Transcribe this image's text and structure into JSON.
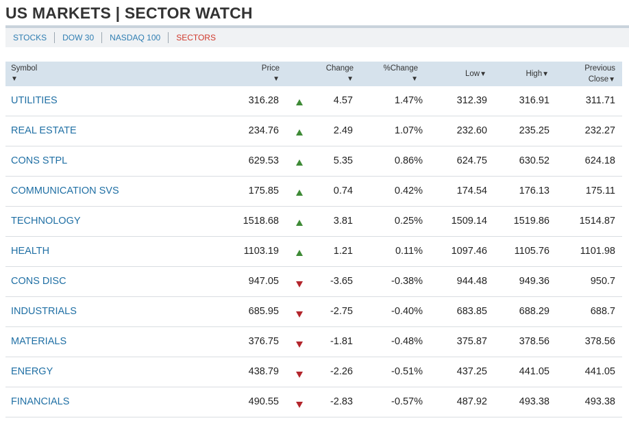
{
  "title": "US MARKETS | SECTOR WATCH",
  "tabs": [
    {
      "label": "STOCKS"
    },
    {
      "label": "DOW 30"
    },
    {
      "label": "NASDAQ 100"
    },
    {
      "label": "SECTORS",
      "active": true
    }
  ],
  "columns": {
    "symbol": "Symbol",
    "price": "Price",
    "change": "Change",
    "pct_change": "%Change",
    "low": "Low",
    "high": "High",
    "prev_close_line1": "Previous",
    "prev_close_line2": "Close",
    "sort_arrow": "▼"
  },
  "colors": {
    "up": "#3e8a36",
    "down": "#b3252c",
    "accent": "#1f6fa4",
    "active_tab": "#d0382b"
  },
  "rows": [
    {
      "symbol": "UTILITIES",
      "price": "316.28",
      "dir": "up",
      "change": "4.57",
      "pct": "1.47%",
      "low": "312.39",
      "high": "316.91",
      "prev": "311.71"
    },
    {
      "symbol": "REAL ESTATE",
      "price": "234.76",
      "dir": "up",
      "change": "2.49",
      "pct": "1.07%",
      "low": "232.60",
      "high": "235.25",
      "prev": "232.27"
    },
    {
      "symbol": "CONS STPL",
      "price": "629.53",
      "dir": "up",
      "change": "5.35",
      "pct": "0.86%",
      "low": "624.75",
      "high": "630.52",
      "prev": "624.18"
    },
    {
      "symbol": "COMMUNICATION SVS",
      "price": "175.85",
      "dir": "up",
      "change": "0.74",
      "pct": "0.42%",
      "low": "174.54",
      "high": "176.13",
      "prev": "175.11"
    },
    {
      "symbol": "TECHNOLOGY",
      "price": "1518.68",
      "dir": "up",
      "change": "3.81",
      "pct": "0.25%",
      "low": "1509.14",
      "high": "1519.86",
      "prev": "1514.87"
    },
    {
      "symbol": "HEALTH",
      "price": "1103.19",
      "dir": "up",
      "change": "1.21",
      "pct": "0.11%",
      "low": "1097.46",
      "high": "1105.76",
      "prev": "1101.98"
    },
    {
      "symbol": "CONS DISC",
      "price": "947.05",
      "dir": "down",
      "change": "-3.65",
      "pct": "-0.38%",
      "low": "944.48",
      "high": "949.36",
      "prev": "950.7"
    },
    {
      "symbol": "INDUSTRIALS",
      "price": "685.95",
      "dir": "down",
      "change": "-2.75",
      "pct": "-0.40%",
      "low": "683.85",
      "high": "688.29",
      "prev": "688.7"
    },
    {
      "symbol": "MATERIALS",
      "price": "376.75",
      "dir": "down",
      "change": "-1.81",
      "pct": "-0.48%",
      "low": "375.87",
      "high": "378.56",
      "prev": "378.56"
    },
    {
      "symbol": "ENERGY",
      "price": "438.79",
      "dir": "down",
      "change": "-2.26",
      "pct": "-0.51%",
      "low": "437.25",
      "high": "441.05",
      "prev": "441.05"
    },
    {
      "symbol": "FINANCIALS",
      "price": "490.55",
      "dir": "down",
      "change": "-2.83",
      "pct": "-0.57%",
      "low": "487.92",
      "high": "493.38",
      "prev": "493.38"
    }
  ]
}
